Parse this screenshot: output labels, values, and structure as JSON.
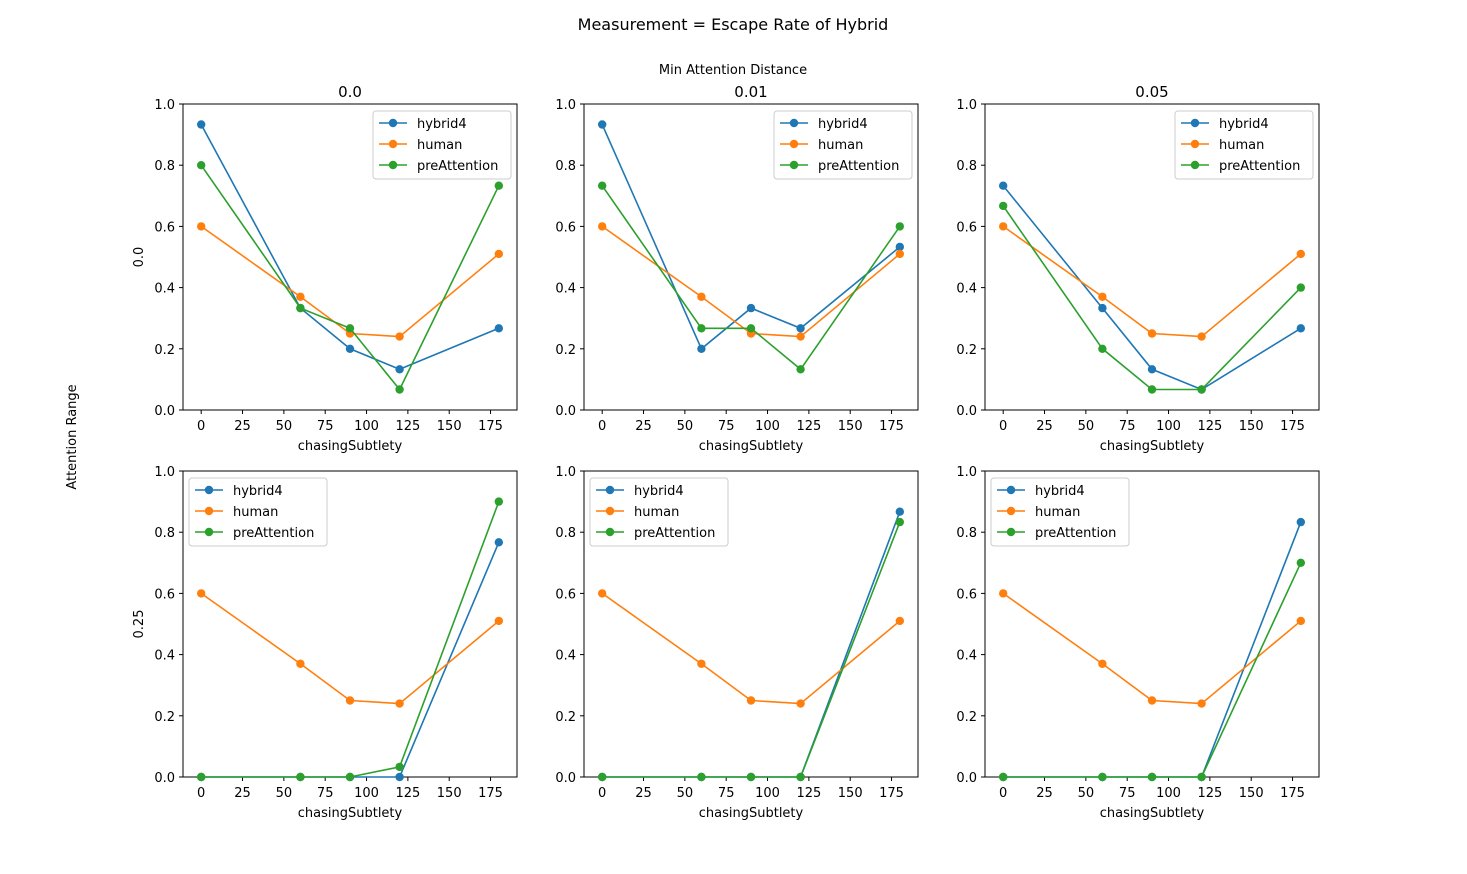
{
  "figure": {
    "suptitle": "Measurement = Escape Rate of Hybrid",
    "column_group_label": "Min Attention Distance",
    "row_group_label": "Attention Range",
    "column_titles": [
      "0.0",
      "0.01",
      "0.05"
    ],
    "row_labels": [
      "0.0",
      "0.25"
    ],
    "xlabel": "chasingSubtlety",
    "colors": {
      "hybrid4": "#1f77b4",
      "human": "#ff7f0e",
      "preAttention": "#2ca02c"
    }
  },
  "chart_data": [
    {
      "type": "line",
      "row": "0.0",
      "column": "0.0",
      "x": [
        0,
        60,
        90,
        120,
        180
      ],
      "xticks": [
        "0",
        "25",
        "50",
        "75",
        "100",
        "125",
        "150",
        "175"
      ],
      "yticks": [
        "0.0",
        "0.2",
        "0.4",
        "0.6",
        "0.8",
        "1.0"
      ],
      "xlim": [
        -11,
        191
      ],
      "ylim": [
        0,
        1.0
      ],
      "legend_position": "upper-right",
      "series": [
        {
          "name": "hybrid4",
          "values": [
            0.933,
            0.333,
            0.2,
            0.133,
            0.267
          ]
        },
        {
          "name": "human",
          "values": [
            0.6,
            0.37,
            0.25,
            0.24,
            0.51
          ]
        },
        {
          "name": "preAttention",
          "values": [
            0.8,
            0.333,
            0.267,
            0.067,
            0.733
          ]
        }
      ]
    },
    {
      "type": "line",
      "row": "0.0",
      "column": "0.01",
      "x": [
        0,
        60,
        90,
        120,
        180
      ],
      "xticks": [
        "0",
        "25",
        "50",
        "75",
        "100",
        "125",
        "150",
        "175"
      ],
      "yticks": [
        "0.0",
        "0.2",
        "0.4",
        "0.6",
        "0.8",
        "1.0"
      ],
      "xlim": [
        -11,
        191
      ],
      "ylim": [
        0,
        1.0
      ],
      "legend_position": "upper-right",
      "series": [
        {
          "name": "hybrid4",
          "values": [
            0.933,
            0.2,
            0.333,
            0.267,
            0.533
          ]
        },
        {
          "name": "human",
          "values": [
            0.6,
            0.37,
            0.25,
            0.24,
            0.51
          ]
        },
        {
          "name": "preAttention",
          "values": [
            0.733,
            0.267,
            0.267,
            0.133,
            0.6
          ]
        }
      ]
    },
    {
      "type": "line",
      "row": "0.0",
      "column": "0.05",
      "x": [
        0,
        60,
        90,
        120,
        180
      ],
      "xticks": [
        "0",
        "25",
        "50",
        "75",
        "100",
        "125",
        "150",
        "175"
      ],
      "yticks": [
        "0.0",
        "0.2",
        "0.4",
        "0.6",
        "0.8",
        "1.0"
      ],
      "xlim": [
        -11,
        191
      ],
      "ylim": [
        0,
        1.0
      ],
      "legend_position": "upper-right",
      "series": [
        {
          "name": "hybrid4",
          "values": [
            0.733,
            0.333,
            0.133,
            0.067,
            0.267
          ]
        },
        {
          "name": "human",
          "values": [
            0.6,
            0.37,
            0.25,
            0.24,
            0.51
          ]
        },
        {
          "name": "preAttention",
          "values": [
            0.667,
            0.2,
            0.067,
            0.067,
            0.4
          ]
        }
      ]
    },
    {
      "type": "line",
      "row": "0.25",
      "column": "0.0",
      "x": [
        0,
        60,
        90,
        120,
        180
      ],
      "xticks": [
        "0",
        "25",
        "50",
        "75",
        "100",
        "125",
        "150",
        "175"
      ],
      "yticks": [
        "0.0",
        "0.2",
        "0.4",
        "0.6",
        "0.8",
        "1.0"
      ],
      "xlim": [
        -11,
        191
      ],
      "ylim": [
        0,
        1.0
      ],
      "legend_position": "upper-left",
      "series": [
        {
          "name": "hybrid4",
          "values": [
            0.0,
            0.0,
            0.0,
            0.0,
            0.767
          ]
        },
        {
          "name": "human",
          "values": [
            0.6,
            0.37,
            0.25,
            0.24,
            0.51
          ]
        },
        {
          "name": "preAttention",
          "values": [
            0.0,
            0.0,
            0.0,
            0.033,
            0.9
          ]
        }
      ]
    },
    {
      "type": "line",
      "row": "0.25",
      "column": "0.01",
      "x": [
        0,
        60,
        90,
        120,
        180
      ],
      "xticks": [
        "0",
        "25",
        "50",
        "75",
        "100",
        "125",
        "150",
        "175"
      ],
      "yticks": [
        "0.0",
        "0.2",
        "0.4",
        "0.6",
        "0.8",
        "1.0"
      ],
      "xlim": [
        -11,
        191
      ],
      "ylim": [
        0,
        1.0
      ],
      "legend_position": "upper-left",
      "series": [
        {
          "name": "hybrid4",
          "values": [
            0.0,
            0.0,
            0.0,
            0.0,
            0.867
          ]
        },
        {
          "name": "human",
          "values": [
            0.6,
            0.37,
            0.25,
            0.24,
            0.51
          ]
        },
        {
          "name": "preAttention",
          "values": [
            0.0,
            0.0,
            0.0,
            0.0,
            0.833
          ]
        }
      ]
    },
    {
      "type": "line",
      "row": "0.25",
      "column": "0.05",
      "x": [
        0,
        60,
        90,
        120,
        180
      ],
      "xticks": [
        "0",
        "25",
        "50",
        "75",
        "100",
        "125",
        "150",
        "175"
      ],
      "yticks": [
        "0.0",
        "0.2",
        "0.4",
        "0.6",
        "0.8",
        "1.0"
      ],
      "xlim": [
        -11,
        191
      ],
      "ylim": [
        0,
        1.0
      ],
      "legend_position": "upper-left",
      "series": [
        {
          "name": "hybrid4",
          "values": [
            0.0,
            0.0,
            0.0,
            0.0,
            0.833
          ]
        },
        {
          "name": "human",
          "values": [
            0.6,
            0.37,
            0.25,
            0.24,
            0.51
          ]
        },
        {
          "name": "preAttention",
          "values": [
            0.0,
            0.0,
            0.0,
            0.0,
            0.7
          ]
        }
      ]
    }
  ]
}
